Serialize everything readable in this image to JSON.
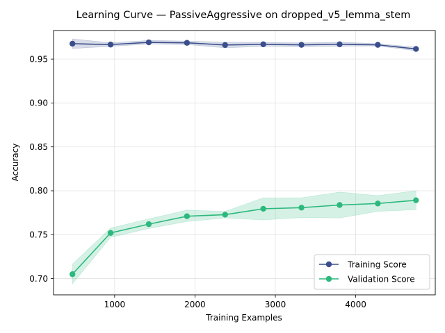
{
  "chart_data": {
    "type": "line",
    "title": "Learning Curve — PassiveAggressive on dropped_v5_lemma_stem",
    "xlabel": "Training Examples",
    "ylabel": "Accuracy",
    "xlim": [
      240,
      4990
    ],
    "ylim": [
      0.6815,
      0.9825
    ],
    "xticks": [
      1000,
      2000,
      3000,
      4000
    ],
    "xtick_labels": [
      "1000",
      "2000",
      "3000",
      "4000"
    ],
    "yticks": [
      0.7,
      0.75,
      0.8,
      0.85,
      0.9,
      0.95
    ],
    "ytick_labels": [
      "0.70",
      "0.75",
      "0.80",
      "0.85",
      "0.90",
      "0.95"
    ],
    "grid": true,
    "legend_position": "lower right",
    "x": [
      475,
      950,
      1425,
      1900,
      2375,
      2850,
      3325,
      3800,
      4275,
      4750
    ],
    "series": [
      {
        "name": "Training Score",
        "color": "#3b4e8c",
        "band_color": "#3b4e8c",
        "marker": "circle",
        "values": [
          0.9675,
          0.9665,
          0.969,
          0.9685,
          0.966,
          0.9668,
          0.9662,
          0.9668,
          0.9662,
          0.9615
        ],
        "band_lower": [
          0.962,
          0.9645,
          0.967,
          0.9665,
          0.9628,
          0.9645,
          0.964,
          0.9645,
          0.965,
          0.9595
        ],
        "band_upper": [
          0.973,
          0.9685,
          0.9712,
          0.9705,
          0.9692,
          0.969,
          0.9685,
          0.9692,
          0.9675,
          0.9635
        ]
      },
      {
        "name": "Validation Score",
        "color": "#2db87d",
        "band_color": "#2db87d",
        "marker": "circle",
        "values": [
          0.705,
          0.752,
          0.762,
          0.771,
          0.7728,
          0.7795,
          0.7808,
          0.7838,
          0.7855,
          0.7892
        ],
        "band_lower": [
          0.694,
          0.747,
          0.757,
          0.765,
          0.769,
          0.7668,
          0.7695,
          0.769,
          0.7765,
          0.7785
        ],
        "band_upper": [
          0.7165,
          0.7575,
          0.768,
          0.778,
          0.7765,
          0.792,
          0.792,
          0.7985,
          0.7945,
          0.8
        ]
      }
    ]
  }
}
